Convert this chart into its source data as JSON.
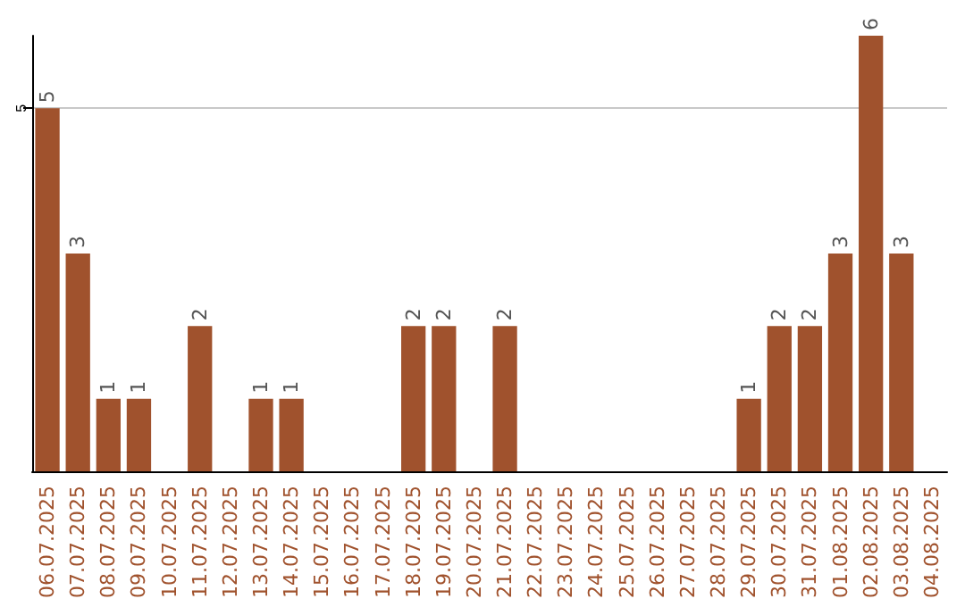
{
  "chart_data": {
    "type": "bar",
    "categories": [
      "06.07.2025",
      "07.07.2025",
      "08.07.2025",
      "09.07.2025",
      "10.07.2025",
      "11.07.2025",
      "12.07.2025",
      "13.07.2025",
      "14.07.2025",
      "15.07.2025",
      "16.07.2025",
      "17.07.2025",
      "18.07.2025",
      "19.07.2025",
      "20.07.2025",
      "21.07.2025",
      "22.07.2025",
      "23.07.2025",
      "24.07.2025",
      "25.07.2025",
      "26.07.2025",
      "27.07.2025",
      "28.07.2025",
      "29.07.2025",
      "30.07.2025",
      "31.07.2025",
      "01.08.2025",
      "02.08.2025",
      "03.08.2025",
      "04.08.2025"
    ],
    "values": [
      5,
      3,
      1,
      1,
      0,
      2,
      0,
      1,
      1,
      0,
      0,
      0,
      2,
      2,
      0,
      2,
      0,
      0,
      0,
      0,
      0,
      0,
      0,
      1,
      2,
      2,
      3,
      6,
      3,
      0
    ],
    "value_labels": [
      "5",
      "3",
      "1",
      "1",
      null,
      "2",
      null,
      "1",
      "1",
      null,
      null,
      null,
      "2",
      "2",
      null,
      "2",
      null,
      null,
      null,
      null,
      null,
      null,
      null,
      "1",
      "2",
      "2",
      "3",
      "6",
      "3",
      null
    ],
    "color": "#a0522d",
    "ylim": [
      0,
      6
    ],
    "yticks": [
      5
    ],
    "grid": "y"
  }
}
